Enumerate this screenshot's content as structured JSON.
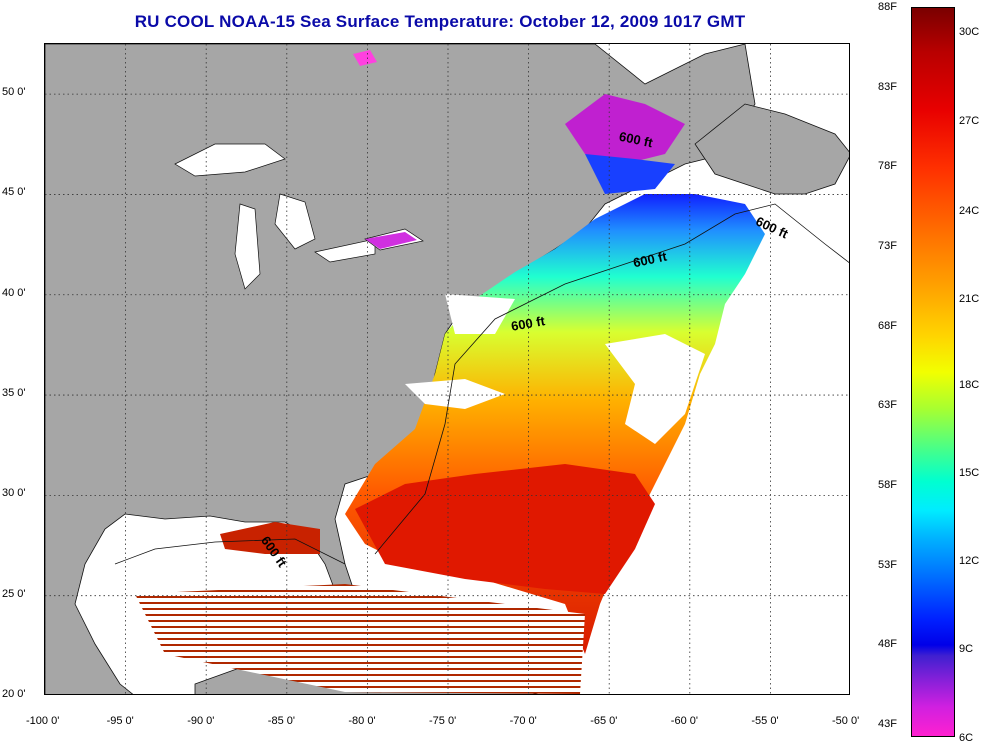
{
  "title": "RU COOL  NOAA-15  Sea Surface Temperature:  October 12, 2009 1017 GMT",
  "map": {
    "lon_range": [
      -100,
      -50
    ],
    "lat_range": [
      20,
      52.5
    ],
    "grid": true,
    "lon_ticks": [
      "-100 0'",
      "-95 0'",
      "-90 0'",
      "-85 0'",
      "-80 0'",
      "-75 0'",
      "-70 0'",
      "-65 0'",
      "-60 0'",
      "-55 0'",
      "-50 0'"
    ],
    "lat_ticks": [
      "20 0'",
      "25 0'",
      "30 0'",
      "35 0'",
      "40 0'",
      "45 0'",
      "50 0'"
    ],
    "isobath_labels": [
      "600 ft",
      "600 ft",
      "600 ft",
      "600 ft",
      "600 ft"
    ],
    "colors": {
      "land": "#a6a6a6",
      "no_data": "#ffffff",
      "title": "#0a0aa8"
    }
  },
  "colorbar": {
    "fahrenheit": [
      "88F",
      "83F",
      "78F",
      "73F",
      "68F",
      "63F",
      "58F",
      "53F",
      "48F",
      "43F"
    ],
    "celsius": [
      "30C",
      "27C",
      "24C",
      "21C",
      "18C",
      "15C",
      "12C",
      "9C",
      "6C"
    ]
  }
}
